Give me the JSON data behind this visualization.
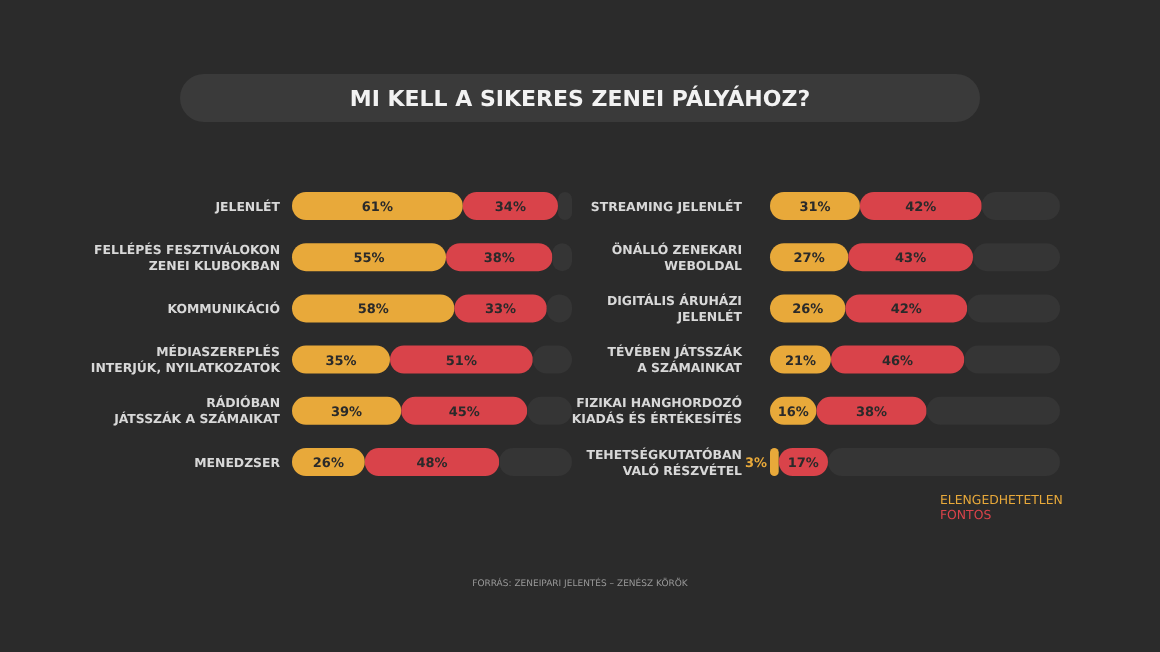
{
  "chart_data": [
    {
      "type": "bar",
      "title": "MI KELL A SIKERES ZENEI PÁLYÁHOZ?",
      "orientation": "horizontal",
      "stacked": true,
      "xlim": [
        0,
        100
      ],
      "tick_labels": false,
      "grid": false,
      "legend": false,
      "categories": [
        "JELENLÉT",
        "FELLÉPÉS FESZTIVÁLOKON\nZENEI KLUBOKBAN",
        "KOMMUNIKÁCIÓ",
        "MÉDIASZEREPLÉS\nINTERJÚK, NYILATKOZATOK",
        "RÁDIÓBAN\nJÁTSSZÁK A SZÁMAIKAT",
        "MENEDZSER"
      ],
      "series": [
        {
          "color": "#e8a93a",
          "values": [
            61,
            55,
            58,
            35,
            39,
            26
          ],
          "value_labels": [
            "61%",
            "55%",
            "58%",
            "35%",
            "39%",
            "26%"
          ]
        },
        {
          "color": "#d9434a",
          "values": [
            34,
            38,
            33,
            51,
            45,
            48
          ],
          "value_labels": [
            "34%",
            "38%",
            "33%",
            "51%",
            "45%",
            "48%"
          ]
        },
        {
          "color": "#353535",
          "values": [
            5,
            7,
            9,
            14,
            16,
            26
          ]
        }
      ]
    },
    {
      "type": "bar",
      "orientation": "horizontal",
      "stacked": true,
      "xlim": [
        0,
        100
      ],
      "tick_labels": false,
      "grid": false,
      "legend": "bottom right",
      "categories": [
        "STREAMING JELENLÉT",
        "ÖNÁLLÓ ZENEKARI\nWEBOLDAL",
        "DIGITÁLIS ÁRUHÁZI\nJELENLÉT",
        "TÉVÉBEN JÁTSSZÁK\nA SZÁMAINKAT",
        "FIZIKAI HANGHORDOZÓ\nKIADÁS ÉS ÉRTÉKESÍTÉS",
        "TEHETSÉGKUTATÓBAN\nVALÓ RÉSZVÉTEL"
      ],
      "series": [
        {
          "name": "ELENGEDHETETLEN",
          "color": "#e8a93a",
          "values": [
            31,
            27,
            26,
            21,
            16,
            3
          ],
          "value_labels": [
            "31%",
            "27%",
            "26%",
            "21%",
            "16%",
            "3%"
          ]
        },
        {
          "name": "FONTOS",
          "color": "#d9434a",
          "values": [
            42,
            43,
            42,
            46,
            38,
            17
          ],
          "value_labels": [
            "42%",
            "43%",
            "42%",
            "46%",
            "38%",
            "17%"
          ]
        },
        {
          "color": "#353535",
          "values": [
            27,
            30,
            32,
            33,
            46,
            80
          ]
        }
      ],
      "annotations": [
        "FORRÁS: ZENEIPARI JELENTÉS – ZENÉSZ KÖRÖK"
      ]
    }
  ]
}
